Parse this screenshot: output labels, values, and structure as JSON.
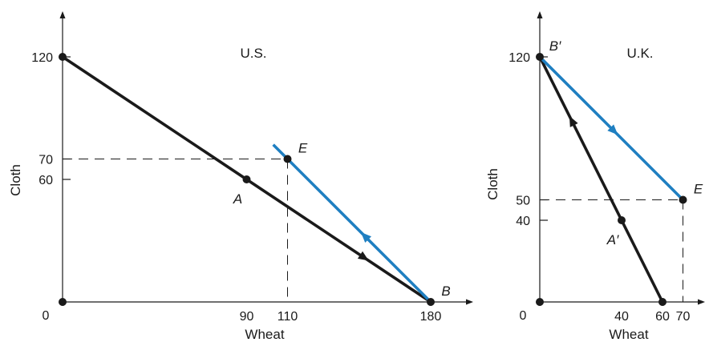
{
  "colors": {
    "axis": "#1a1a1a",
    "production_frontier": "#1a1a1a",
    "trade_line": "#1f7fc1",
    "guide": "#1a1a1a"
  },
  "chart_data": [
    {
      "type": "line",
      "title": "U.S.",
      "xlabel": "Wheat",
      "ylabel": "Cloth",
      "origin_label": "0",
      "xlim": [
        0,
        215
      ],
      "ylim": [
        0,
        140
      ],
      "x_ticks": [
        {
          "value": 90,
          "label": "90",
          "tick_mark": false
        },
        {
          "value": 110,
          "label": "110",
          "tick_mark": false
        },
        {
          "value": 180,
          "label": "180",
          "tick_mark": false
        }
      ],
      "y_ticks": [
        {
          "value": 120,
          "label": "120",
          "tick_mark": true
        },
        {
          "value": 70,
          "label": "70",
          "tick_mark": true
        },
        {
          "value": 60,
          "label": "60",
          "tick_mark": true
        }
      ],
      "series": [
        {
          "role": "production_frontier",
          "color": "#1a1a1a",
          "points": [
            [
              0,
              120
            ],
            [
              180,
              0
            ]
          ],
          "arrow": {
            "at": 0.82,
            "direction": "forward"
          }
        },
        {
          "role": "trade_line",
          "color": "#1f7fc1",
          "points": [
            [
              103,
              77
            ],
            [
              180,
              0
            ]
          ],
          "arrow": {
            "at": 0.58,
            "direction": "backward"
          }
        }
      ],
      "markers": [
        {
          "x": 0,
          "y": 120
        },
        {
          "x": 0,
          "y": 0
        },
        {
          "x": 90,
          "y": 60
        },
        {
          "x": 110,
          "y": 70
        },
        {
          "x": 180,
          "y": 0
        }
      ],
      "annotations": [
        {
          "text": "A",
          "x": 90,
          "y": 60,
          "anchor": "below-left"
        },
        {
          "text": "E",
          "x": 110,
          "y": 70,
          "anchor": "upper-right"
        },
        {
          "text": "B",
          "x": 180,
          "y": 0,
          "anchor": "upper-right"
        }
      ],
      "guides": [
        {
          "from": [
            0,
            70
          ],
          "to": [
            110,
            70
          ]
        },
        {
          "from": [
            110,
            70
          ],
          "to": [
            110,
            0
          ]
        }
      ]
    },
    {
      "type": "line",
      "title": "U.K.",
      "xlabel": "Wheat",
      "ylabel": "Cloth",
      "origin_label": "0",
      "xlim": [
        0,
        74
      ],
      "ylim": [
        0,
        140
      ],
      "x_ticks": [
        {
          "value": 40,
          "label": "40",
          "tick_mark": false
        },
        {
          "value": 60,
          "label": "60",
          "tick_mark": false
        },
        {
          "value": 70,
          "label": "70",
          "tick_mark": false
        }
      ],
      "y_ticks": [
        {
          "value": 120,
          "label": "120",
          "tick_mark": true
        },
        {
          "value": 50,
          "label": "50",
          "tick_mark": true
        },
        {
          "value": 40,
          "label": "40",
          "tick_mark": true
        }
      ],
      "series": [
        {
          "role": "production_frontier",
          "color": "#1a1a1a",
          "points": [
            [
              0,
              120
            ],
            [
              60,
              0
            ]
          ],
          "arrow": {
            "at": 0.26,
            "direction": "backward"
          }
        },
        {
          "role": "trade_line",
          "color": "#1f7fc1",
          "points": [
            [
              0,
              120
            ],
            [
              70,
              50
            ]
          ],
          "arrow": {
            "at": 0.52,
            "direction": "forward"
          }
        }
      ],
      "markers": [
        {
          "x": 0,
          "y": 120
        },
        {
          "x": 0,
          "y": 0
        },
        {
          "x": 40,
          "y": 40
        },
        {
          "x": 70,
          "y": 50
        },
        {
          "x": 60,
          "y": 0
        }
      ],
      "annotations": [
        {
          "text": "B′",
          "x": 0,
          "y": 120,
          "anchor": "upper-right"
        },
        {
          "text": "A′",
          "x": 40,
          "y": 40,
          "anchor": "below-left"
        },
        {
          "text": "E",
          "x": 70,
          "y": 50,
          "anchor": "upper-right"
        }
      ],
      "guides": [
        {
          "from": [
            0,
            50
          ],
          "to": [
            70,
            50
          ]
        },
        {
          "from": [
            70,
            50
          ],
          "to": [
            70,
            0
          ]
        }
      ]
    }
  ]
}
